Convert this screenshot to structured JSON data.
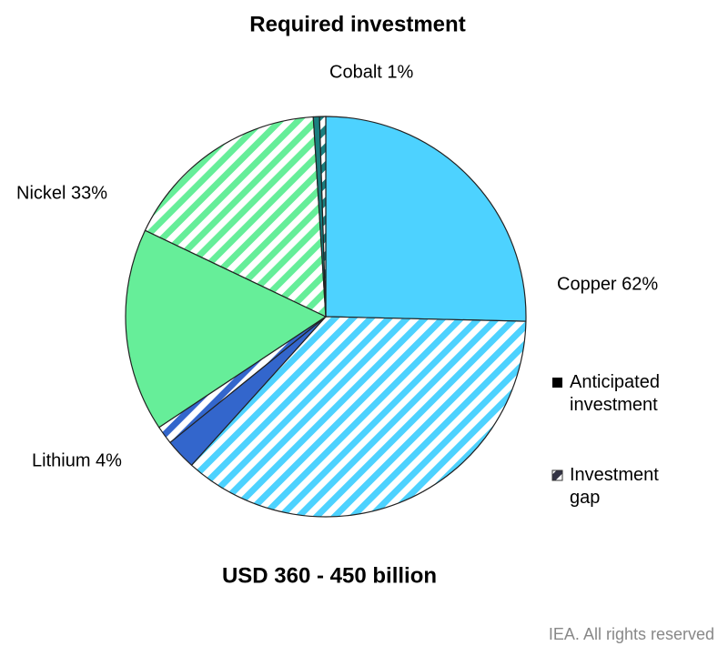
{
  "chart_data": {
    "type": "pie",
    "title": "Required investment",
    "subtitle": "USD 360 - 450 billion",
    "source": "IEA. All rights reserved",
    "categories": [
      "Copper 62%",
      "Lithium 4%",
      "Nickel 33%",
      "Cobalt 1%"
    ],
    "colors": [
      "#4dd2ff",
      "#3366cc",
      "#66ee99",
      "#1a8080"
    ],
    "series": [
      {
        "name": "Anticipated investment",
        "values": [
          25.5,
          2.5,
          16.5,
          0.5
        ]
      },
      {
        "name": "Investment gap",
        "values": [
          36.5,
          1.5,
          17,
          0.5
        ]
      }
    ]
  }
}
